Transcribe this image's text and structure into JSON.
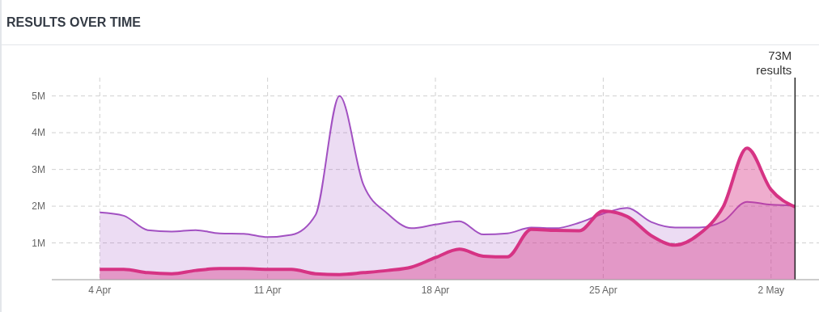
{
  "chart_data": {
    "type": "area",
    "title": "RESULTS OVER TIME",
    "x": [
      "--04-04",
      "--04-05",
      "--04-06",
      "--04-07",
      "--04-08",
      "--04-09",
      "--04-10",
      "--04-11",
      "--04-12",
      "--04-13",
      "--04-14",
      "--04-15",
      "--04-16",
      "--04-17",
      "--04-18",
      "--04-19",
      "--04-20",
      "--04-21",
      "--04-22",
      "--04-23",
      "--04-24",
      "--04-25",
      "--04-26",
      "--04-27",
      "--04-28",
      "--04-29",
      "--04-30",
      "--05-01",
      "--05-02",
      "--05-03"
    ],
    "series": [
      {
        "color": "#a251c2",
        "values": [
          1.83,
          1.74,
          1.35,
          1.31,
          1.35,
          1.26,
          1.25,
          1.16,
          1.22,
          1.76,
          5.0,
          2.58,
          1.8,
          1.4,
          1.5,
          1.59,
          1.23,
          1.26,
          1.42,
          1.4,
          1.55,
          1.8,
          1.95,
          1.57,
          1.42,
          1.42,
          1.59,
          2.12,
          2.04,
          2.02
        ]
      },
      {
        "color": "#d63384",
        "values": [
          0.28,
          0.28,
          0.19,
          0.16,
          0.25,
          0.3,
          0.3,
          0.28,
          0.28,
          0.16,
          0.14,
          0.19,
          0.25,
          0.34,
          0.6,
          0.83,
          0.64,
          0.62,
          1.37,
          1.34,
          1.33,
          1.87,
          1.72,
          1.2,
          0.94,
          1.24,
          1.98,
          3.58,
          2.45,
          1.98
        ]
      }
    ],
    "xlim": [
      "--04-02",
      "--05-04"
    ],
    "xticks": [
      {
        "value": "--04-04",
        "label": "4 Apr"
      },
      {
        "value": "--04-11",
        "label": "11 Apr"
      },
      {
        "value": "--04-18",
        "label": "18 Apr"
      },
      {
        "value": "--04-25",
        "label": "25 Apr"
      },
      {
        "value": "--05-02",
        "label": "2 May"
      }
    ],
    "ylim": [
      0,
      5.5
    ],
    "yticks": [
      {
        "value": 1,
        "label": "1M"
      },
      {
        "value": 2,
        "label": "2M"
      },
      {
        "value": 3,
        "label": "3M"
      },
      {
        "value": 4,
        "label": "4M"
      },
      {
        "value": 5,
        "label": "5M"
      }
    ],
    "grid": true,
    "legend": false,
    "marker": "none",
    "line_style": "solid",
    "ref_lines": [
      {
        "axis": "x",
        "value": "--05-03",
        "label": "73M results",
        "color": "#222222",
        "line_style": "solid"
      }
    ]
  }
}
